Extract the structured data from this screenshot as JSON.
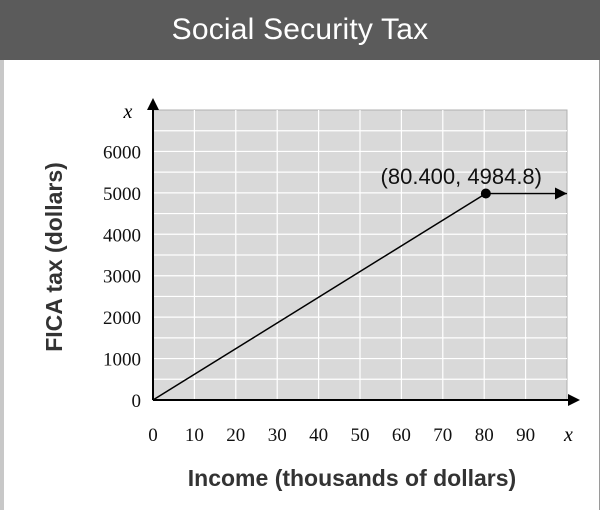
{
  "colors": {
    "title_bar": "#5b5b5b",
    "title_text": "#ffffff",
    "plot_background": "#d9d9d9",
    "grid": "#ffffff",
    "axis": "#000000",
    "line": "#000000"
  },
  "chart_data": {
    "type": "line",
    "title": "Social Security Tax",
    "xlabel": "Income (thousands of dollars)",
    "ylabel": "FICA tax (dollars)",
    "x_axis_letter": "x",
    "y_axis_letter": "x",
    "xlim": [
      0,
      100
    ],
    "ylim": [
      0,
      7000
    ],
    "x_ticks": [
      0,
      10,
      20,
      30,
      40,
      50,
      60,
      70,
      80,
      90
    ],
    "y_ticks": [
      0,
      1000,
      2000,
      3000,
      4000,
      5000,
      6000
    ],
    "grid": true,
    "series": [
      {
        "x": [
          0,
          80.4
        ],
        "y": [
          0,
          4984.8
        ]
      },
      {
        "x": [
          80.4,
          100
        ],
        "y": [
          4984.8,
          4984.8
        ]
      }
    ],
    "marked_point": {
      "x": 80.4,
      "y": 4984.8
    },
    "annotation": "(80.400, 4984.8)"
  }
}
